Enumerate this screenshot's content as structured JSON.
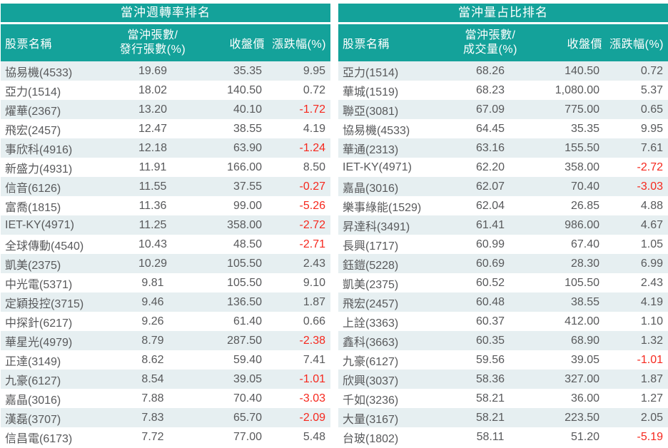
{
  "colors": {
    "header_teal": "#14A29A",
    "row_stripe": "#E6EFF1",
    "text_grey": "#58595B",
    "negative_red": "#F6281E"
  },
  "tables": [
    {
      "title": "當沖週轉率排名",
      "headers": {
        "stock": "股票名稱",
        "ratio_line1": "當沖張數/",
        "ratio_line2": "發行張數(%)",
        "close": "收盤價",
        "change": "漲跌幅(%)"
      },
      "rows": [
        {
          "name": "協易機(4533)",
          "ratio": "19.69",
          "close": "35.35",
          "change": "9.95"
        },
        {
          "name": "亞力(1514)",
          "ratio": "18.02",
          "close": "140.50",
          "change": "0.72"
        },
        {
          "name": "燿華(2367)",
          "ratio": "13.20",
          "close": "40.10",
          "change": "-1.72"
        },
        {
          "name": "飛宏(2457)",
          "ratio": "12.47",
          "close": "38.55",
          "change": "4.19"
        },
        {
          "name": "事欣科(4916)",
          "ratio": "12.18",
          "close": "63.90",
          "change": "-1.24"
        },
        {
          "name": "新盛力(4931)",
          "ratio": "11.91",
          "close": "166.00",
          "change": "8.50"
        },
        {
          "name": "信音(6126)",
          "ratio": "11.55",
          "close": "37.55",
          "change": "-0.27"
        },
        {
          "name": "富喬(1815)",
          "ratio": "11.36",
          "close": "99.00",
          "change": "-5.26"
        },
        {
          "name": "IET-KY(4971)",
          "ratio": "11.25",
          "close": "358.00",
          "change": "-2.72"
        },
        {
          "name": "全球傳動(4540)",
          "ratio": "10.43",
          "close": "48.50",
          "change": "-2.71"
        },
        {
          "name": "凱美(2375)",
          "ratio": "10.29",
          "close": "105.50",
          "change": "2.43"
        },
        {
          "name": "中光電(5371)",
          "ratio": "9.81",
          "close": "105.50",
          "change": "9.10"
        },
        {
          "name": "定穎投控(3715)",
          "ratio": "9.46",
          "close": "136.50",
          "change": "1.87"
        },
        {
          "name": "中探針(6217)",
          "ratio": "9.26",
          "close": "61.40",
          "change": "0.66"
        },
        {
          "name": "華星光(4979)",
          "ratio": "8.79",
          "close": "287.50",
          "change": "-2.38"
        },
        {
          "name": "正達(3149)",
          "ratio": "8.62",
          "close": "59.40",
          "change": "7.41"
        },
        {
          "name": "九豪(6127)",
          "ratio": "8.54",
          "close": "39.05",
          "change": "-1.01"
        },
        {
          "name": "嘉晶(3016)",
          "ratio": "7.88",
          "close": "70.40",
          "change": "-3.03"
        },
        {
          "name": "漢磊(3707)",
          "ratio": "7.83",
          "close": "65.70",
          "change": "-2.09"
        },
        {
          "name": "信昌電(6173)",
          "ratio": "7.72",
          "close": "77.00",
          "change": "5.48"
        }
      ]
    },
    {
      "title": "當沖量占比排名",
      "headers": {
        "stock": "股票名稱",
        "ratio_line1": "當沖張數/",
        "ratio_line2": "成交量(%)",
        "close": "收盤價",
        "change": "漲跌幅(%)"
      },
      "rows": [
        {
          "name": "亞力(1514)",
          "ratio": "68.26",
          "close": "140.50",
          "change": "0.72"
        },
        {
          "name": "華城(1519)",
          "ratio": "68.23",
          "close": "1,080.00",
          "change": "5.37"
        },
        {
          "name": "聯亞(3081)",
          "ratio": "67.09",
          "close": "775.00",
          "change": "0.65"
        },
        {
          "name": "協易機(4533)",
          "ratio": "64.45",
          "close": "35.35",
          "change": "9.95"
        },
        {
          "name": "華通(2313)",
          "ratio": "63.16",
          "close": "155.50",
          "change": "7.61"
        },
        {
          "name": "IET-KY(4971)",
          "ratio": "62.20",
          "close": "358.00",
          "change": "-2.72"
        },
        {
          "name": "嘉晶(3016)",
          "ratio": "62.07",
          "close": "70.40",
          "change": "-3.03"
        },
        {
          "name": "樂事綠能(1529)",
          "ratio": "62.04",
          "close": "26.85",
          "change": "4.88"
        },
        {
          "name": "昇達科(3491)",
          "ratio": "61.41",
          "close": "986.00",
          "change": "4.67"
        },
        {
          "name": "長興(1717)",
          "ratio": "60.99",
          "close": "67.40",
          "change": "1.05"
        },
        {
          "name": "鈺鎧(5228)",
          "ratio": "60.69",
          "close": "28.30",
          "change": "6.99"
        },
        {
          "name": "凱美(2375)",
          "ratio": "60.52",
          "close": "105.50",
          "change": "2.43"
        },
        {
          "name": "飛宏(2457)",
          "ratio": "60.48",
          "close": "38.55",
          "change": "4.19"
        },
        {
          "name": "上詮(3363)",
          "ratio": "60.37",
          "close": "412.00",
          "change": "1.10"
        },
        {
          "name": "鑫科(3663)",
          "ratio": "60.35",
          "close": "68.90",
          "change": "1.32"
        },
        {
          "name": "九豪(6127)",
          "ratio": "59.56",
          "close": "39.05",
          "change": "-1.01"
        },
        {
          "name": "欣興(3037)",
          "ratio": "58.36",
          "close": "327.00",
          "change": "1.87"
        },
        {
          "name": "千如(3236)",
          "ratio": "58.21",
          "close": "36.00",
          "change": "1.27"
        },
        {
          "name": "大量(3167)",
          "ratio": "58.21",
          "close": "223.50",
          "change": "2.05"
        },
        {
          "name": "台玻(1802)",
          "ratio": "58.11",
          "close": "51.20",
          "change": "-5.19"
        }
      ]
    }
  ]
}
